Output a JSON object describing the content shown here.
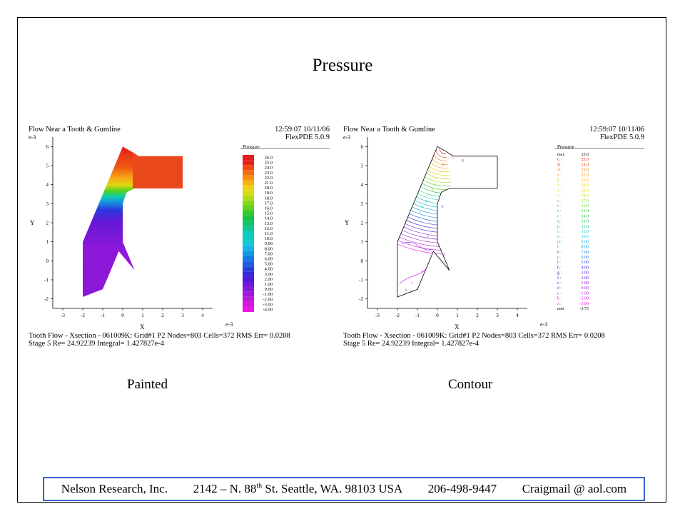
{
  "slide": {
    "title": "Pressure"
  },
  "plots": [
    {
      "header_left": "Flow Near a Tooth & Gumline",
      "header_right_time": "12:59:07 10/11/06",
      "header_right_version": "FlexPDE 5.0.9",
      "axis_exponent_y": "e-3",
      "axis_exponent_x": "e-3",
      "xlabel": "X",
      "ylabel": "Y",
      "legend_title": "Pressure",
      "footer_line1": "Tooth Flow - Xsection - 061009K:  Grid#1  P2  Nodes=803  Cells=372  RMS Err= 0.0208",
      "footer_line2": "Stage 5  Re=  24.92239  Integral=  1.427827e-4",
      "caption": "Painted"
    },
    {
      "header_left": "Flow Near a Tooth & Gumline",
      "header_right_time": "12:59:07 10/11/06",
      "header_right_version": "FlexPDE 5.0.9",
      "axis_exponent_y": "e-3",
      "axis_exponent_x": "e-3",
      "xlabel": "X",
      "ylabel": "Y",
      "legend_title": "Pressure",
      "footer_line1": "Tooth Flow - Xsection - 061009K:  Grid#1  P2  Nodes=803  Cells=372  RMS Err= 0.0208",
      "footer_line2": "Stage 5  Re=  24.92239  Integral=  1.427827e-4",
      "caption": "Contour"
    }
  ],
  "chart_data": {
    "type": "heatmap",
    "x_ticks": [
      "-3",
      "-2",
      "-1",
      "0",
      "1",
      "2",
      "3",
      "4"
    ],
    "y_ticks": [
      "-2",
      "-1",
      "0",
      "1",
      "2",
      "3",
      "4",
      "5",
      "6"
    ],
    "xlim": [
      -3.5,
      4.5
    ],
    "ylim": [
      -2.5,
      6.5
    ],
    "painted_legend_levels": [
      "26.0",
      "25.0",
      "24.0",
      "23.0",
      "22.0",
      "21.0",
      "20.0",
      "19.0",
      "18.0",
      "17.0",
      "16.0",
      "15.0",
      "14.0",
      "13.0",
      "12.0",
      "11.0",
      "10.0",
      "9.00",
      "8.00",
      "7.00",
      "6.00",
      "5.00",
      "4.00",
      "3.00",
      "2.00",
      "1.00",
      "0.00",
      "-1.00",
      "-2.00",
      "-3.00",
      "-4.00"
    ],
    "contour_legend": [
      {
        "label": "max",
        "value": "25.0",
        "color": "#000000"
      },
      {
        "label": "C :",
        "value": "25.0",
        "color": "#e5231b"
      },
      {
        "label": "B :",
        "value": "24.0",
        "color": "#ef4a17"
      },
      {
        "label": "A :",
        "value": "23.0",
        "color": "#f26d14"
      },
      {
        "label": "z :",
        "value": "22.0",
        "color": "#f59013"
      },
      {
        "label": "y :",
        "value": "21.0",
        "color": "#f7b214"
      },
      {
        "label": "x :",
        "value": "20.0",
        "color": "#f2cf14"
      },
      {
        "label": "w :",
        "value": "19.0",
        "color": "#d8dc14"
      },
      {
        "label": "v :",
        "value": "18.0",
        "color": "#b0dc16"
      },
      {
        "label": "u :",
        "value": "17.0",
        "color": "#88d81a"
      },
      {
        "label": "t :",
        "value": "16.0",
        "color": "#5ed020"
      },
      {
        "label": "s :",
        "value": "15.0",
        "color": "#34c92a"
      },
      {
        "label": "r :",
        "value": "14.0",
        "color": "#14c242"
      },
      {
        "label": "q :",
        "value": "13.0",
        "color": "#10c46a"
      },
      {
        "label": "p :",
        "value": "12.0",
        "color": "#0ec894"
      },
      {
        "label": "o :",
        "value": "11.0",
        "color": "#0ccbbe"
      },
      {
        "label": "n :",
        "value": "10.0",
        "color": "#10c6dc"
      },
      {
        "label": "m :",
        "value": "9.00",
        "color": "#12b2e4"
      },
      {
        "label": "l :",
        "value": "8.00",
        "color": "#1496e6"
      },
      {
        "label": "k :",
        "value": "7.00",
        "color": "#187ae4"
      },
      {
        "label": "j :",
        "value": "6.00",
        "color": "#1c5ee2"
      },
      {
        "label": "i :",
        "value": "5.00",
        "color": "#2242de"
      },
      {
        "label": "h :",
        "value": "4.00",
        "color": "#3428da"
      },
      {
        "label": "g :",
        "value": "3.00",
        "color": "#4e1cd8"
      },
      {
        "label": "f :",
        "value": "2.00",
        "color": "#6a18d6"
      },
      {
        "label": "e :",
        "value": "1.00",
        "color": "#8618d8"
      },
      {
        "label": "d :",
        "value": "0.00",
        "color": "#a018da"
      },
      {
        "label": "c :",
        "value": "-1.00",
        "color": "#ba18dc"
      },
      {
        "label": "b :",
        "value": "-2.00",
        "color": "#d418e0"
      },
      {
        "label": "a :",
        "value": "-3.00",
        "color": "#ea18e4"
      },
      {
        "label": "min",
        "value": "-3.75",
        "color": "#000000"
      }
    ],
    "contour_letters": [
      "C",
      "B",
      "A",
      "z",
      "y",
      "x",
      "u",
      "r",
      "p",
      "o",
      "l",
      "h",
      "f",
      "e",
      "d",
      "c",
      "b"
    ]
  },
  "footer": {
    "company": "Nelson Research, Inc.",
    "address_pre": "2142 – N. 88",
    "address_sup": "th",
    "address_post": " St. Seattle, WA. 98103  USA",
    "phone": "206-498-9447",
    "email": "Craigmail @ aol.com"
  }
}
